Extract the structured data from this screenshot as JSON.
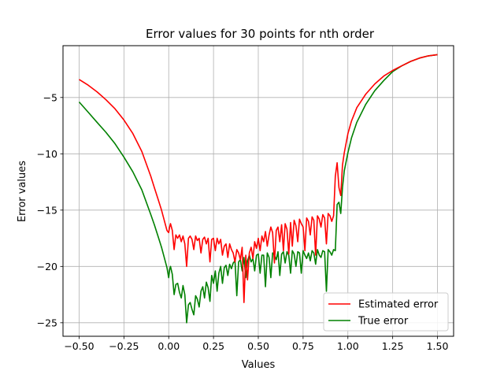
{
  "chart_data": {
    "type": "line",
    "title": "Error values for 30 points for nth order",
    "xlabel": "Values",
    "ylabel": "Error values",
    "xlim": [
      -0.59,
      1.59
    ],
    "ylim": [
      -26.2,
      -0.4
    ],
    "xticks": [
      -0.5,
      -0.25,
      0.0,
      0.25,
      0.5,
      0.75,
      1.0,
      1.25,
      1.5
    ],
    "xtick_labels": [
      "−0.50",
      "−0.25",
      "0.00",
      "0.25",
      "0.50",
      "0.75",
      "1.00",
      "1.25",
      "1.50"
    ],
    "yticks": [
      -25,
      -20,
      -15,
      -10,
      -5
    ],
    "ytick_labels": [
      "−25",
      "−20",
      "−15",
      "−10",
      "−5"
    ],
    "grid": true,
    "legend_position": "lower-right",
    "series": [
      {
        "name": "Estimated error",
        "color": "#ff0000",
        "x": [
          -0.5,
          -0.45,
          -0.4,
          -0.35,
          -0.3,
          -0.25,
          -0.2,
          -0.15,
          -0.1,
          -0.08,
          -0.06,
          -0.04,
          -0.03,
          -0.02,
          -0.01,
          0.0,
          0.005,
          0.01,
          0.02,
          0.03,
          0.04,
          0.05,
          0.06,
          0.07,
          0.08,
          0.09,
          0.1,
          0.11,
          0.12,
          0.13,
          0.14,
          0.15,
          0.16,
          0.17,
          0.18,
          0.19,
          0.2,
          0.21,
          0.22,
          0.23,
          0.24,
          0.25,
          0.26,
          0.27,
          0.28,
          0.29,
          0.3,
          0.31,
          0.32,
          0.33,
          0.34,
          0.35,
          0.36,
          0.37,
          0.38,
          0.39,
          0.4,
          0.41,
          0.42,
          0.43,
          0.44,
          0.45,
          0.46,
          0.47,
          0.48,
          0.49,
          0.5,
          0.51,
          0.52,
          0.53,
          0.54,
          0.55,
          0.56,
          0.57,
          0.58,
          0.59,
          0.6,
          0.61,
          0.62,
          0.63,
          0.64,
          0.65,
          0.66,
          0.67,
          0.68,
          0.69,
          0.7,
          0.71,
          0.72,
          0.73,
          0.74,
          0.75,
          0.76,
          0.77,
          0.78,
          0.79,
          0.8,
          0.81,
          0.82,
          0.83,
          0.84,
          0.85,
          0.86,
          0.87,
          0.88,
          0.89,
          0.9,
          0.91,
          0.92,
          0.93,
          0.94,
          0.95,
          0.96,
          0.97,
          0.98,
          1.0,
          1.02,
          1.05,
          1.1,
          1.15,
          1.2,
          1.25,
          1.3,
          1.35,
          1.4,
          1.45,
          1.5
        ],
        "y": [
          -3.4,
          -3.9,
          -4.5,
          -5.2,
          -6.0,
          -7.0,
          -8.2,
          -9.8,
          -12.0,
          -13.0,
          -14.0,
          -15.0,
          -15.6,
          -16.2,
          -16.8,
          -17.0,
          -16.5,
          -16.2,
          -16.8,
          -18.5,
          -17.2,
          -17.5,
          -17.2,
          -17.8,
          -17.3,
          -18.0,
          -20.0,
          -17.5,
          -17.3,
          -17.6,
          -18.5,
          -17.3,
          -17.7,
          -17.5,
          -18.8,
          -17.6,
          -17.4,
          -18.0,
          -17.5,
          -19.6,
          -17.6,
          -17.5,
          -18.6,
          -17.5,
          -18.0,
          -17.6,
          -19.0,
          -18.2,
          -18.0,
          -19.2,
          -18.0,
          -18.5,
          -18.8,
          -19.6,
          -18.5,
          -18.8,
          -19.4,
          -18.3,
          -23.2,
          -19.0,
          -21.2,
          -18.8,
          -18.3,
          -19.3,
          -17.8,
          -18.4,
          -17.5,
          -18.6,
          -17.3,
          -17.8,
          -16.9,
          -18.2,
          -17.2,
          -16.5,
          -17.0,
          -19.7,
          -16.8,
          -16.5,
          -17.8,
          -16.3,
          -18.6,
          -16.2,
          -16.7,
          -18.9,
          -16.1,
          -18.2,
          -15.9,
          -16.4,
          -17.8,
          -15.8,
          -16.2,
          -16.5,
          -18.6,
          -15.7,
          -16.0,
          -17.2,
          -15.6,
          -15.9,
          -19.0,
          -15.5,
          -15.8,
          -16.5,
          -15.4,
          -15.7,
          -18.0,
          -15.3,
          -15.5,
          -16.0,
          -15.5,
          -12.0,
          -10.8,
          -13.0,
          -13.7,
          -11.0,
          -9.9,
          -8.2,
          -7.1,
          -5.9,
          -4.7,
          -3.8,
          -3.1,
          -2.6,
          -2.2,
          -1.8,
          -1.5,
          -1.3,
          -1.2
        ]
      },
      {
        "name": "True error",
        "color": "#008000",
        "x": [
          -0.5,
          -0.45,
          -0.4,
          -0.35,
          -0.3,
          -0.25,
          -0.2,
          -0.15,
          -0.1,
          -0.08,
          -0.06,
          -0.04,
          -0.03,
          -0.02,
          -0.01,
          0.0,
          0.005,
          0.01,
          0.02,
          0.03,
          0.04,
          0.05,
          0.06,
          0.07,
          0.08,
          0.09,
          0.1,
          0.11,
          0.12,
          0.13,
          0.14,
          0.15,
          0.16,
          0.17,
          0.18,
          0.19,
          0.2,
          0.21,
          0.22,
          0.23,
          0.24,
          0.25,
          0.26,
          0.27,
          0.28,
          0.29,
          0.3,
          0.31,
          0.32,
          0.33,
          0.34,
          0.35,
          0.36,
          0.37,
          0.38,
          0.39,
          0.4,
          0.41,
          0.42,
          0.43,
          0.44,
          0.45,
          0.46,
          0.47,
          0.48,
          0.49,
          0.5,
          0.51,
          0.52,
          0.53,
          0.54,
          0.55,
          0.56,
          0.57,
          0.58,
          0.59,
          0.6,
          0.61,
          0.62,
          0.63,
          0.64,
          0.65,
          0.66,
          0.67,
          0.68,
          0.69,
          0.7,
          0.71,
          0.72,
          0.73,
          0.74,
          0.75,
          0.76,
          0.77,
          0.78,
          0.79,
          0.8,
          0.81,
          0.82,
          0.83,
          0.84,
          0.85,
          0.86,
          0.87,
          0.88,
          0.89,
          0.9,
          0.91,
          0.92,
          0.93,
          0.94,
          0.95,
          0.96,
          0.97,
          0.98,
          1.0,
          1.02,
          1.05,
          1.1,
          1.15,
          1.2,
          1.25,
          1.3,
          1.35,
          1.4,
          1.45,
          1.5
        ],
        "y": [
          -5.4,
          -6.3,
          -7.2,
          -8.1,
          -9.1,
          -10.3,
          -11.6,
          -13.2,
          -15.4,
          -16.3,
          -17.3,
          -18.3,
          -18.9,
          -19.5,
          -20.1,
          -21.0,
          -20.3,
          -20.0,
          -20.7,
          -22.5,
          -21.6,
          -21.5,
          -22.3,
          -22.8,
          -21.7,
          -22.5,
          -25.0,
          -23.4,
          -23.2,
          -23.8,
          -24.3,
          -22.6,
          -22.9,
          -23.6,
          -22.2,
          -21.8,
          -22.8,
          -21.4,
          -21.9,
          -23.1,
          -20.8,
          -21.5,
          -20.4,
          -22.2,
          -20.6,
          -20.0,
          -21.5,
          -20.1,
          -19.9,
          -20.8,
          -19.8,
          -20.2,
          -19.7,
          -19.5,
          -22.6,
          -19.6,
          -19.4,
          -20.4,
          -19.2,
          -21.0,
          -19.5,
          -19.0,
          -19.6,
          -19.3,
          -20.4,
          -19.0,
          -18.9,
          -20.6,
          -19.0,
          -19.0,
          -21.8,
          -18.8,
          -19.2,
          -21.0,
          -18.8,
          -19.0,
          -19.4,
          -18.7,
          -20.8,
          -18.9,
          -18.7,
          -19.7,
          -18.7,
          -19.0,
          -20.6,
          -18.6,
          -18.9,
          -20.0,
          -18.7,
          -18.8,
          -20.6,
          -18.6,
          -19.0,
          -19.3,
          -18.8,
          -19.5,
          -18.6,
          -18.8,
          -19.8,
          -18.5,
          -19.0,
          -19.2,
          -18.6,
          -18.7,
          -22.2,
          -18.5,
          -18.7,
          -19.0,
          -18.5,
          -18.6,
          -14.5,
          -14.3,
          -15.3,
          -13.0,
          -11.5,
          -9.9,
          -8.6,
          -7.2,
          -5.6,
          -4.4,
          -3.5,
          -2.7,
          -2.2,
          -1.8,
          -1.5,
          -1.3,
          -1.2
        ]
      }
    ]
  }
}
